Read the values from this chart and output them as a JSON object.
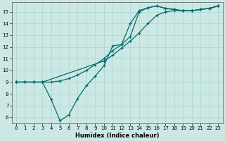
{
  "xlabel": "Humidex (Indice chaleur)",
  "bg_color": "#cce8e4",
  "line_color": "#006b6b",
  "grid_color": "#b0d8d4",
  "xlim": [
    -0.5,
    23.5
  ],
  "ylim": [
    5.5,
    15.8
  ],
  "xticks": [
    0,
    1,
    2,
    3,
    4,
    5,
    6,
    7,
    8,
    9,
    10,
    11,
    12,
    13,
    14,
    15,
    16,
    17,
    18,
    19,
    20,
    21,
    22,
    23
  ],
  "yticks": [
    6,
    7,
    8,
    9,
    10,
    11,
    12,
    13,
    14,
    15
  ],
  "line1_x": [
    0,
    1,
    2,
    3,
    10,
    11,
    12,
    13,
    14,
    15,
    16,
    17,
    18,
    19,
    20,
    21,
    22,
    23
  ],
  "line1_y": [
    9.0,
    9.0,
    9.0,
    9.0,
    10.8,
    11.3,
    11.9,
    12.5,
    13.2,
    14.0,
    14.7,
    15.0,
    15.1,
    15.1,
    15.1,
    15.2,
    15.3,
    15.5
  ],
  "line2_x": [
    0,
    1,
    2,
    3,
    4,
    5,
    6,
    7,
    8,
    9,
    10,
    11,
    12,
    13,
    14,
    15,
    16,
    17,
    18,
    19,
    20,
    21,
    22,
    23
  ],
  "line2_y": [
    9.0,
    9.0,
    9.0,
    9.0,
    9.0,
    9.1,
    9.3,
    9.6,
    10.0,
    10.5,
    11.0,
    11.7,
    12.2,
    12.9,
    15.0,
    15.35,
    15.5,
    15.3,
    15.2,
    15.1,
    15.1,
    15.2,
    15.3,
    15.5
  ],
  "line3_x": [
    0,
    1,
    2,
    3,
    4,
    5,
    6,
    7,
    8,
    9,
    10,
    11,
    12,
    13,
    14,
    15,
    16,
    17,
    18,
    19,
    20,
    21,
    22,
    23
  ],
  "line3_y": [
    9.0,
    9.0,
    9.0,
    9.0,
    7.5,
    5.7,
    6.2,
    7.6,
    8.7,
    9.5,
    10.4,
    12.1,
    12.2,
    14.0,
    15.1,
    15.35,
    15.5,
    15.3,
    15.2,
    15.1,
    15.1,
    15.2,
    15.3,
    15.5
  ],
  "xlabel_fontsize": 6,
  "tick_fontsize": 5
}
